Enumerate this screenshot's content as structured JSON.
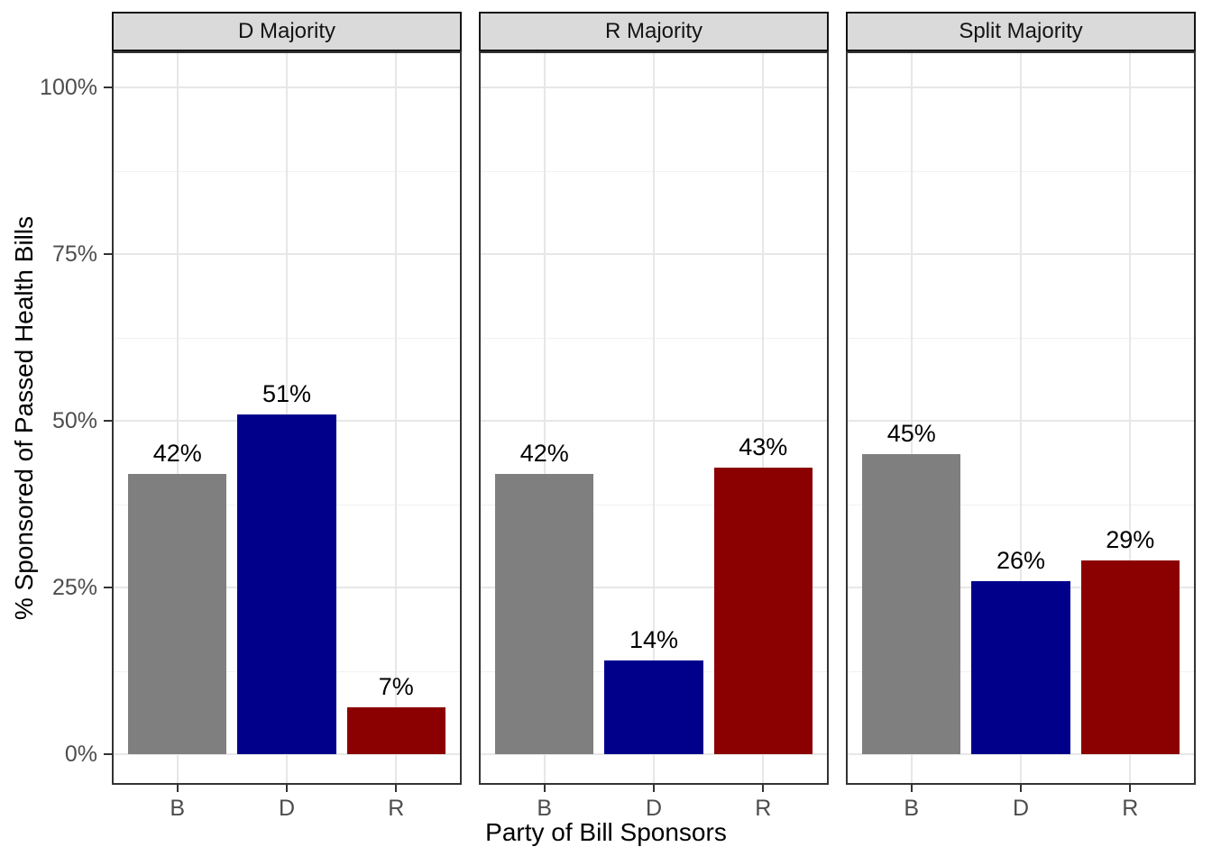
{
  "chart_data": {
    "type": "bar",
    "faceted": true,
    "title": "",
    "xlabel": "Party of Bill Sponsors",
    "ylabel": "% Sponsored of Passed Health Bills",
    "categories": [
      "B",
      "D",
      "R"
    ],
    "facets": [
      {
        "label": "D Majority",
        "values": [
          42,
          51,
          7
        ],
        "bar_labels": [
          "42%",
          "51%",
          "7%"
        ]
      },
      {
        "label": "R Majority",
        "values": [
          42,
          14,
          43
        ],
        "bar_labels": [
          "42%",
          "14%",
          "43%"
        ]
      },
      {
        "label": "Split Majority",
        "values": [
          45,
          26,
          29
        ],
        "bar_labels": [
          "45%",
          "26%",
          "29%"
        ]
      }
    ],
    "bar_colors": {
      "B": "#7F7F7F",
      "D": "#00008B",
      "R": "#8B0000"
    },
    "y_ticks": {
      "labels": [
        "0%",
        "25%",
        "50%",
        "75%",
        "100%"
      ],
      "values": [
        0,
        25,
        50,
        75,
        100
      ]
    },
    "y_minor_gridlines": [
      12.5,
      37.5,
      62.5,
      87.5
    ],
    "ylim": [
      0,
      100
    ],
    "legend": "none",
    "grid": true,
    "styles": {
      "strip_background": "#DADADA",
      "strip_border": "#141414",
      "panel_border": "#333333",
      "grid_major": "#E7E7E7",
      "grid_minor": "#F1F1F1",
      "axis_text": "#4D4D4D",
      "tick_mark": "#333333",
      "bar_label_color": "#000000"
    }
  }
}
